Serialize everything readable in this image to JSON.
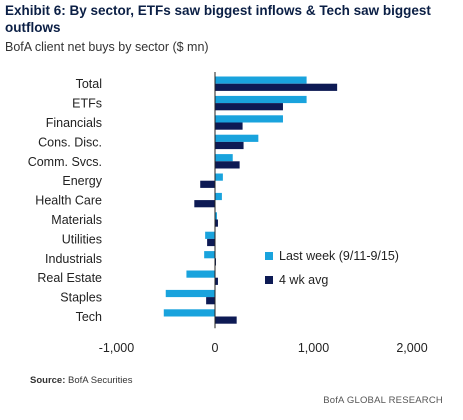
{
  "header": {
    "title": "Exhibit 6: By sector, ETFs saw biggest inflows & Tech saw biggest outflows",
    "subtitle": "BofA client net buys by sector ($ mn)"
  },
  "footer": {
    "source_label": "Source:",
    "source_text": "BofA Securities",
    "brand": "BofA GLOBAL RESEARCH"
  },
  "colors": {
    "last_week": "#19a3dd",
    "four_wk": "#0d1a54",
    "axis": "#222222"
  },
  "chart_data": {
    "type": "bar",
    "orientation": "horizontal",
    "categories": [
      "Total",
      "ETFs",
      "Financials",
      "Cons. Disc.",
      "Comm. Svcs.",
      "Energy",
      "Health Care",
      "Materials",
      "Utilities",
      "Industrials",
      "Real Estate",
      "Staples",
      "Tech"
    ],
    "series": [
      {
        "name": "Last week (9/11-9/15)",
        "values": [
          930,
          930,
          690,
          440,
          180,
          80,
          70,
          20,
          -100,
          -110,
          -290,
          -500,
          -520
        ]
      },
      {
        "name": "4 wk avg",
        "values": [
          1240,
          690,
          280,
          290,
          250,
          -150,
          -210,
          30,
          -80,
          10,
          30,
          -90,
          220
        ]
      }
    ],
    "xlim": [
      -1000,
      2000
    ],
    "xticks": [
      "-1,000",
      "0",
      "1,000",
      "2,000"
    ],
    "xtick_values": [
      -1000,
      0,
      1000,
      2000
    ],
    "legend_position": "right"
  }
}
